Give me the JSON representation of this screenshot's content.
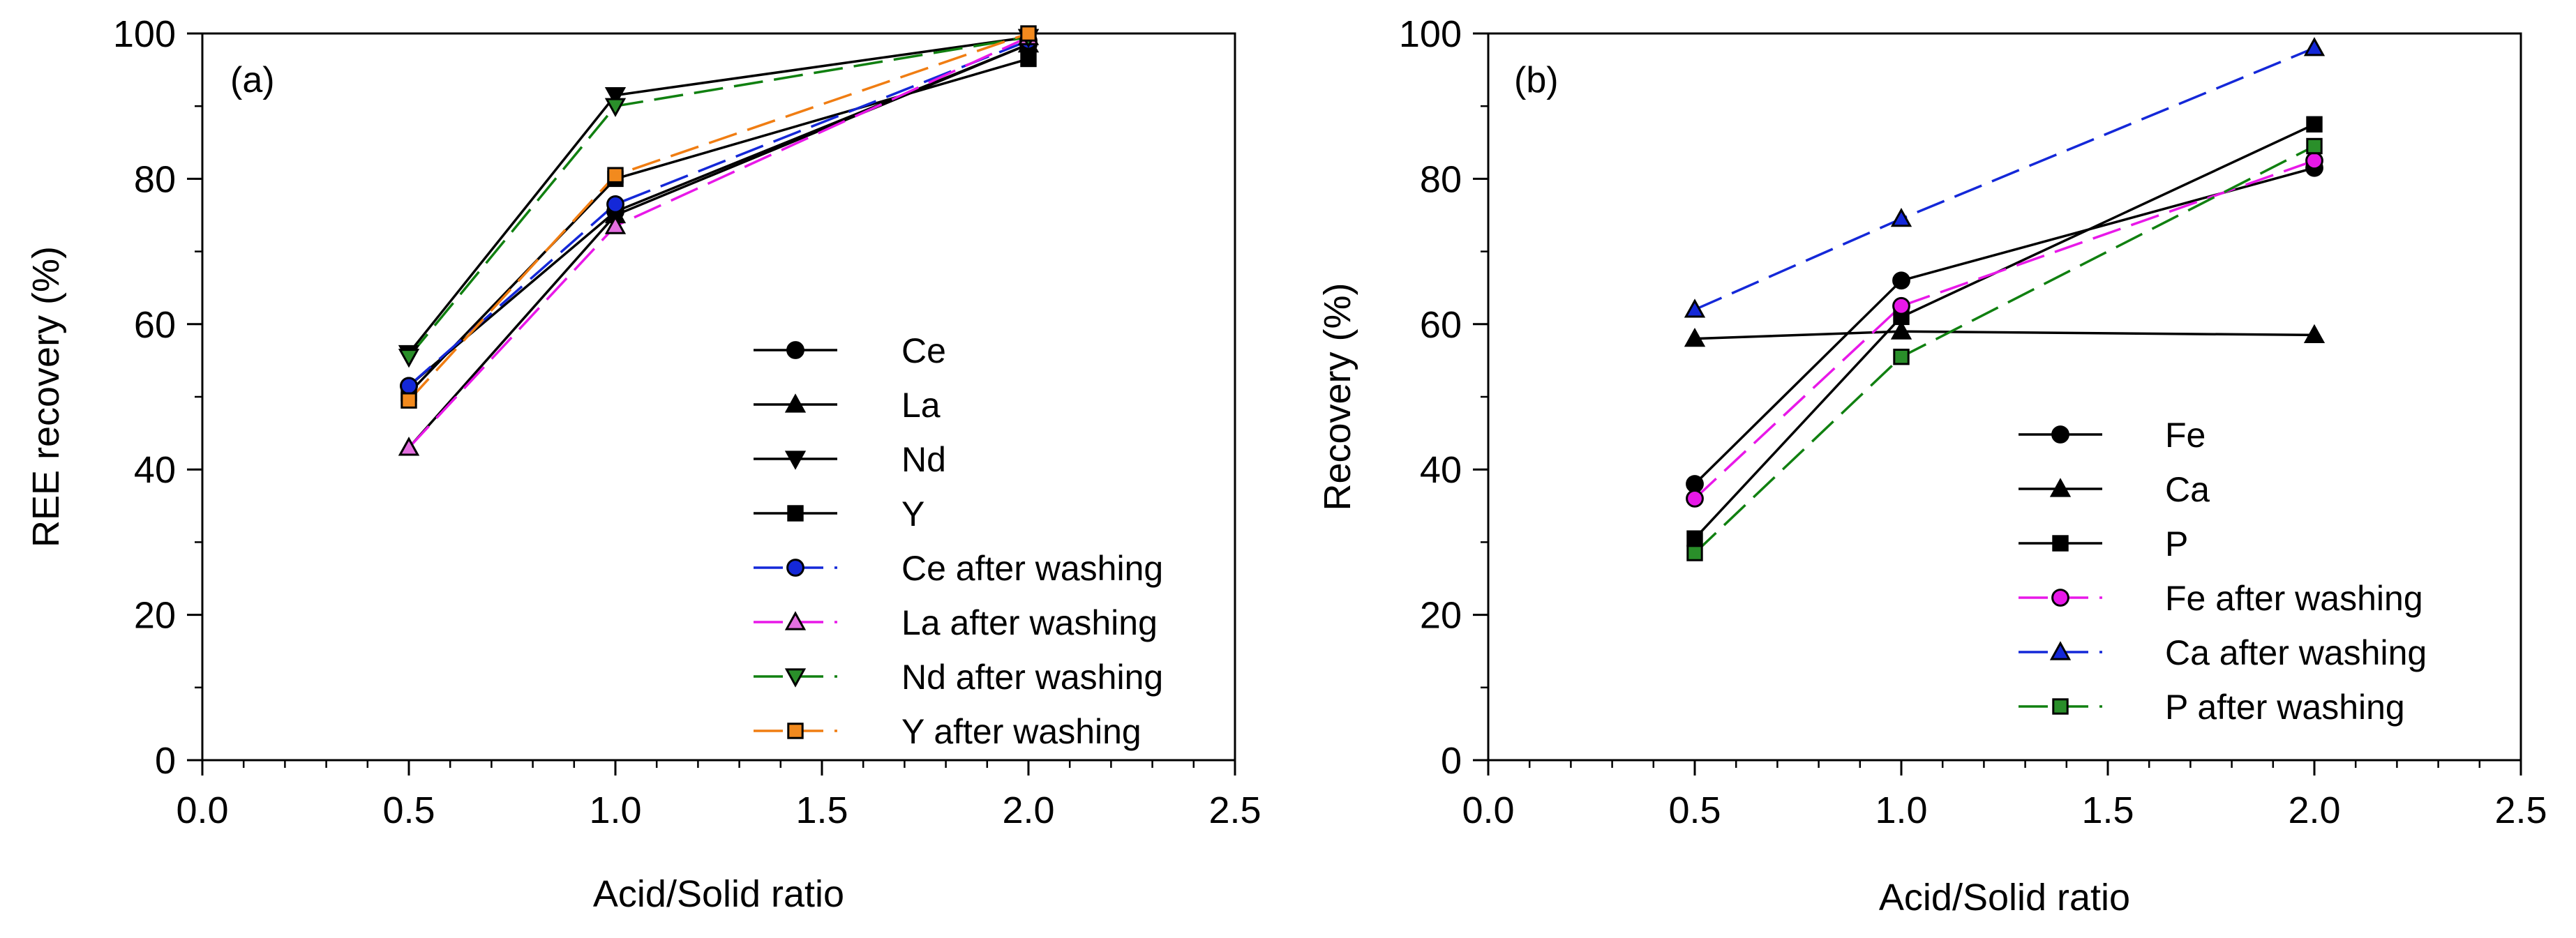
{
  "chart_data": [
    {
      "type": "line",
      "panel_label": "(a)",
      "title": "",
      "xlabel": "Acid/Solid ratio",
      "ylabel": "REE recovery (%)",
      "xlim": [
        0.0,
        2.5
      ],
      "ylim": [
        0,
        100
      ],
      "xticks": [
        "0.0",
        "0.5",
        "1.0",
        "1.5",
        "2.0",
        "2.5"
      ],
      "yticks": [
        "0",
        "20",
        "40",
        "60",
        "80",
        "100"
      ],
      "grid": false,
      "legend_position": "lower-right",
      "x": [
        0.5,
        1.0,
        2.0
      ],
      "series": [
        {
          "name": "Ce",
          "values": [
            51.5,
            75.5,
            98.5
          ],
          "marker": "circle",
          "color": "#000000",
          "fill": "#000000",
          "dash": "solid"
        },
        {
          "name": "La",
          "values": [
            43.0,
            75.0,
            98.5
          ],
          "marker": "triangle-up",
          "color": "#000000",
          "fill": "#000000",
          "dash": "solid"
        },
        {
          "name": "Nd",
          "values": [
            56.0,
            91.5,
            99.5
          ],
          "marker": "triangle-down",
          "color": "#000000",
          "fill": "#000000",
          "dash": "solid"
        },
        {
          "name": "Y",
          "values": [
            50.5,
            80.0,
            96.5
          ],
          "marker": "square",
          "color": "#000000",
          "fill": "#000000",
          "dash": "solid"
        },
        {
          "name": "Ce after washing",
          "values": [
            51.5,
            76.5,
            99.0
          ],
          "marker": "circle",
          "color": "#1428d8",
          "fill": "#1428d8",
          "dash": "long-dash"
        },
        {
          "name": "La after washing",
          "values": [
            43.0,
            73.5,
            99.5
          ],
          "marker": "triangle-up",
          "color": "#e818e8",
          "fill": "#e36fe0",
          "dash": "long-dash"
        },
        {
          "name": "Nd after washing",
          "values": [
            55.5,
            90.0,
            99.5
          ],
          "marker": "triangle-down",
          "color": "#108010",
          "fill": "#2a8f2a",
          "dash": "long-dash"
        },
        {
          "name": "Y after washing",
          "values": [
            49.5,
            80.5,
            100.0
          ],
          "marker": "square",
          "color": "#f07d12",
          "fill": "#f28a1e",
          "dash": "long-dash"
        }
      ]
    },
    {
      "type": "line",
      "panel_label": "(b)",
      "title": "",
      "xlabel": "Acid/Solid ratio",
      "ylabel": "Recovery (%)",
      "xlim": [
        0.0,
        2.5
      ],
      "ylim": [
        0,
        100
      ],
      "xticks": [
        "0.0",
        "0.5",
        "1.0",
        "1.5",
        "2.0",
        "2.5"
      ],
      "yticks": [
        "0",
        "20",
        "40",
        "60",
        "80",
        "100"
      ],
      "grid": false,
      "legend_position": "lower-right",
      "x": [
        0.5,
        1.0,
        2.0
      ],
      "series": [
        {
          "name": "Fe",
          "values": [
            38.0,
            66.0,
            81.5
          ],
          "marker": "circle",
          "color": "#000000",
          "fill": "#000000",
          "dash": "solid"
        },
        {
          "name": "Ca",
          "values": [
            58.0,
            59.0,
            58.5
          ],
          "marker": "triangle-up",
          "color": "#000000",
          "fill": "#000000",
          "dash": "solid"
        },
        {
          "name": "P",
          "values": [
            30.5,
            61.0,
            87.5
          ],
          "marker": "square",
          "color": "#000000",
          "fill": "#000000",
          "dash": "solid"
        },
        {
          "name": "Fe after washing",
          "values": [
            36.0,
            62.5,
            82.5
          ],
          "marker": "circle",
          "color": "#e818e8",
          "fill": "#e818e8",
          "dash": "long-dash"
        },
        {
          "name": "Ca after washing",
          "values": [
            62.0,
            74.5,
            98.0
          ],
          "marker": "triangle-up",
          "color": "#1428d8",
          "fill": "#1428d8",
          "dash": "long-dash"
        },
        {
          "name": "P after washing",
          "values": [
            28.5,
            55.5,
            84.5
          ],
          "marker": "square",
          "color": "#108010",
          "fill": "#2a8f2a",
          "dash": "long-dash"
        }
      ]
    }
  ]
}
